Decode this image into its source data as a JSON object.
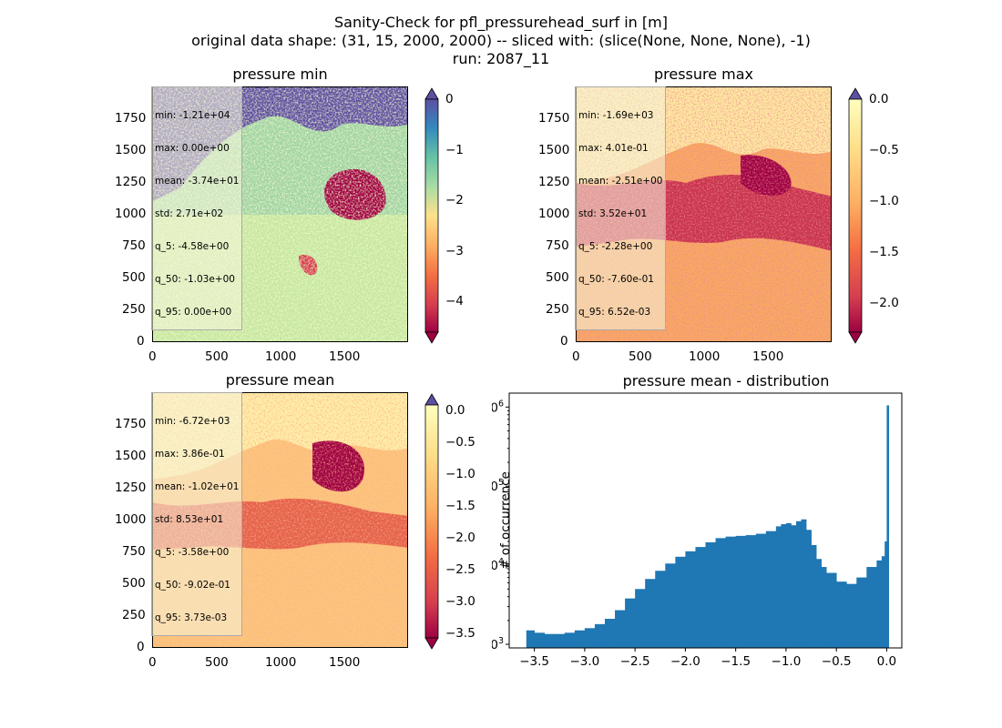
{
  "figure": {
    "title_line1": "Sanity-Check for pfl_pressurehead_surf in [m]",
    "title_line2": "original data shape: (31, 15, 2000, 2000) -- sliced with: (slice(None, None, None), -1)",
    "title_line3": "run: 2087_11"
  },
  "panels": [
    {
      "title": "pressure min",
      "stats": [
        "min: -1.21e+04",
        "max: 0.00e+00",
        "mean: -3.74e+01",
        "std: 2.71e+02",
        "q_5: -4.58e+00",
        "q_50: -1.03e+00",
        "q_95: 0.00e+00"
      ],
      "xticks": [
        "0",
        "500",
        "1000",
        "1500"
      ],
      "yticks": [
        "0",
        "250",
        "500",
        "750",
        "1000",
        "1250",
        "1500",
        "1750"
      ],
      "cbar_ticks": [
        "0",
        "−1",
        "−2",
        "−3",
        "−4"
      ],
      "colormap": "Spectral",
      "clim": [
        -4.58,
        0.0
      ]
    },
    {
      "title": "pressure max",
      "stats": [
        "min: -1.69e+03",
        "max: 4.01e-01",
        "mean: -2.51e+00",
        "std: 3.52e+01",
        "q_5: -2.28e+00",
        "q_50: -7.60e-01",
        "q_95: 6.52e-03"
      ],
      "xticks": [
        "0",
        "500",
        "1000",
        "1500"
      ],
      "yticks": [
        "0",
        "250",
        "500",
        "750",
        "1000",
        "1250",
        "1500",
        "1750"
      ],
      "cbar_ticks": [
        "0.0",
        "−0.5",
        "−1.0",
        "−1.5",
        "−2.0"
      ],
      "colormap": "Spectral",
      "clim": [
        -2.28,
        0.0065
      ]
    },
    {
      "title": "pressure mean",
      "stats": [
        "min: -6.72e+03",
        "max: 3.86e-01",
        "mean: -1.02e+01",
        "std: 8.53e+01",
        "q_5: -3.58e+00",
        "q_50: -9.02e-01",
        "q_95: 3.73e-03"
      ],
      "xticks": [
        "0",
        "500",
        "1000",
        "1500"
      ],
      "yticks": [
        "0",
        "250",
        "500",
        "750",
        "1000",
        "1250",
        "1500",
        "1750"
      ],
      "cbar_ticks": [
        "0.0",
        "−0.5",
        "−1.0",
        "−1.5",
        "−2.0",
        "−2.5",
        "−3.0",
        "−3.5"
      ],
      "colormap": "Spectral",
      "clim": [
        -3.58,
        0.0037
      ]
    }
  ],
  "chart_data": {
    "type": "bar",
    "title": "pressure mean - distribution",
    "xlabel": "",
    "ylabel": "# of occurrence",
    "yscale": "log",
    "xlim": [
      -3.75,
      0.15
    ],
    "ylim": [
      900,
      1500000
    ],
    "xticks": [
      "−3.5",
      "−3.0",
      "−2.5",
      "−2.0",
      "−1.5",
      "−1.0",
      "−0.5",
      "0.0"
    ],
    "yticks": [
      "10^3",
      "10^4",
      "10^5",
      "10^6"
    ],
    "color": "#1f77b4",
    "bins_x": [
      -3.58,
      -3.5,
      -3.4,
      -3.3,
      -3.2,
      -3.1,
      -3.0,
      -2.9,
      -2.8,
      -2.7,
      -2.6,
      -2.5,
      -2.4,
      -2.3,
      -2.2,
      -2.1,
      -2.0,
      -1.9,
      -1.8,
      -1.7,
      -1.6,
      -1.5,
      -1.4,
      -1.3,
      -1.2,
      -1.1,
      -1.05,
      -1.0,
      -0.95,
      -0.9,
      -0.85,
      -0.8,
      -0.75,
      -0.7,
      -0.65,
      -0.6,
      -0.5,
      -0.4,
      -0.3,
      -0.2,
      -0.1,
      -0.05,
      -0.02,
      0.0
    ],
    "counts": [
      1500,
      1400,
      1350,
      1350,
      1400,
      1500,
      1600,
      1800,
      2100,
      2700,
      3800,
      5000,
      6700,
      8500,
      10500,
      12800,
      15000,
      17000,
      19500,
      22000,
      23000,
      23500,
      24000,
      25000,
      27000,
      31000,
      33000,
      34000,
      32000,
      36000,
      38000,
      28000,
      18000,
      12000,
      9500,
      8000,
      6200,
      5800,
      7000,
      9500,
      11500,
      13000,
      20000,
      1050000
    ]
  }
}
